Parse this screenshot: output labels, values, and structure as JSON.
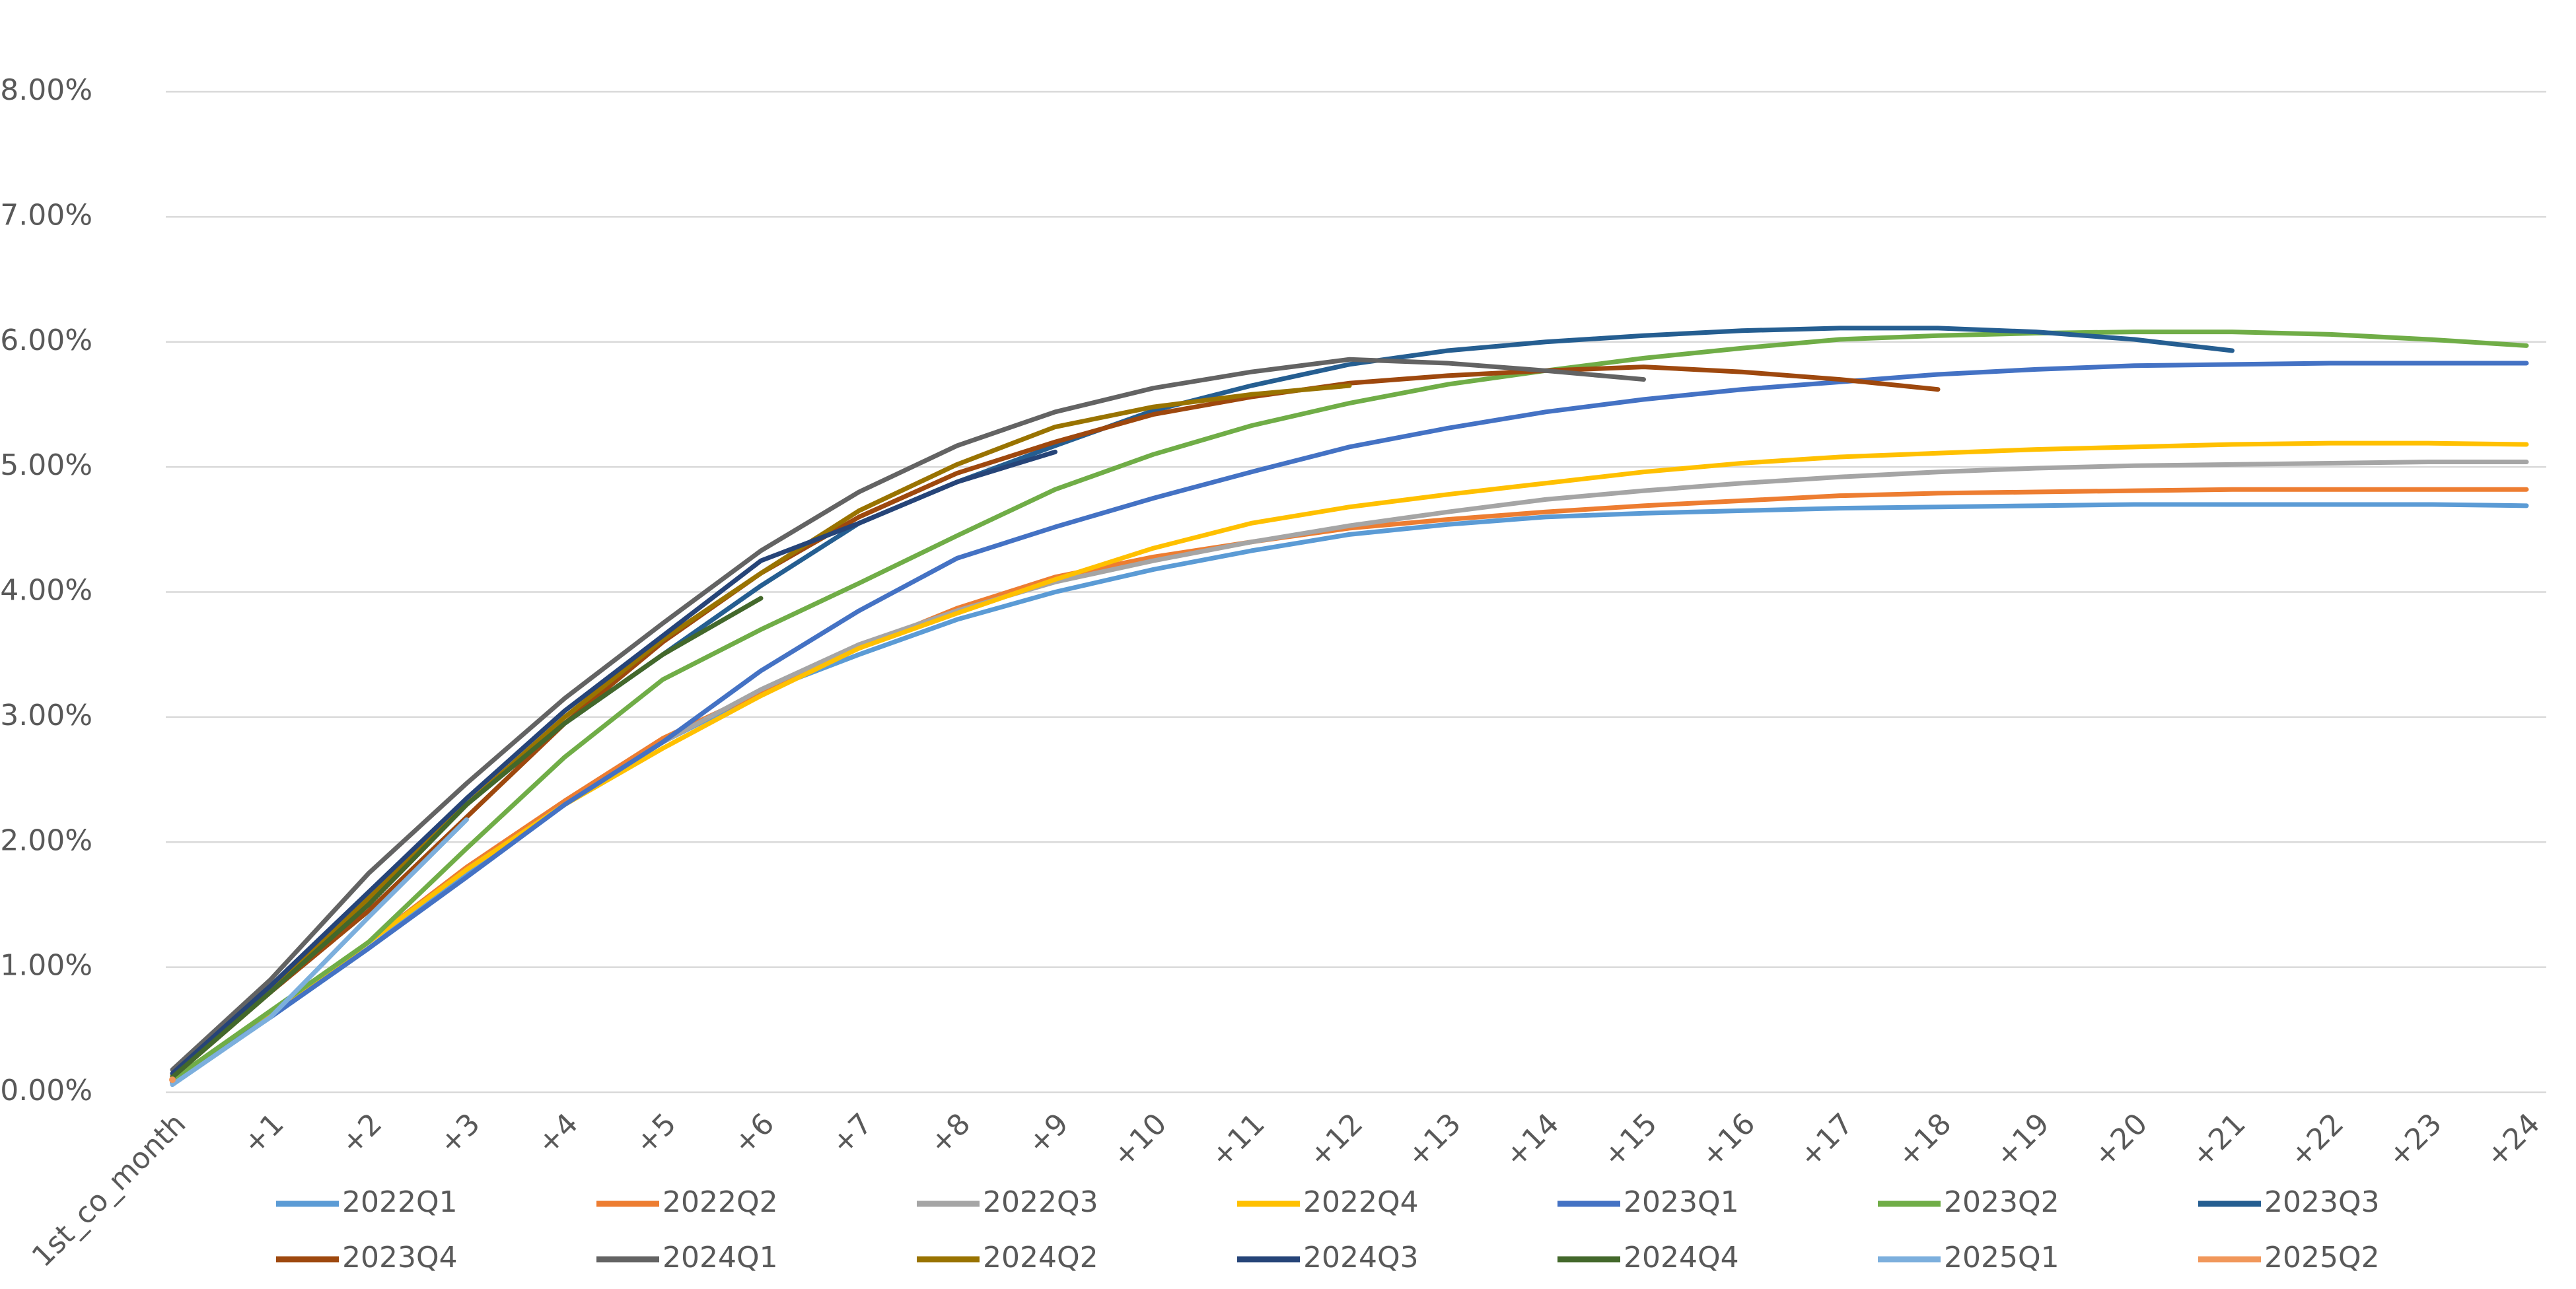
{
  "chart_data": {
    "type": "line",
    "categories": [
      "1st_co_month",
      "+1",
      "+2",
      "+3",
      "+4",
      "+5",
      "+6",
      "+7",
      "+8",
      "+9",
      "+10",
      "+11",
      "+12",
      "+13",
      "+14",
      "+15",
      "+16",
      "+17",
      "+18",
      "+19",
      "+20",
      "+21",
      "+22",
      "+23",
      "+24"
    ],
    "ylim": [
      0,
      8
    ],
    "yticks": [
      {
        "value": 0,
        "label": "0.00%"
      },
      {
        "value": 1,
        "label": "1.00%"
      },
      {
        "value": 2,
        "label": "2.00%"
      },
      {
        "value": 3,
        "label": "3.00%"
      },
      {
        "value": 4,
        "label": "4.00%"
      },
      {
        "value": 5,
        "label": "5.00%"
      },
      {
        "value": 6,
        "label": "6.00%"
      },
      {
        "value": 7,
        "label": "7.00%"
      },
      {
        "value": 8,
        "label": "8.00%"
      }
    ],
    "grid": true,
    "legend": "bottom",
    "series": [
      {
        "name": "2022Q1",
        "color": "#5B9BD5",
        "values": [
          0.07,
          0.6,
          1.15,
          1.75,
          2.3,
          2.8,
          3.2,
          3.5,
          3.78,
          4.0,
          4.18,
          4.33,
          4.46,
          4.54,
          4.6,
          4.63,
          4.65,
          4.67,
          4.68,
          4.69,
          4.7,
          4.7,
          4.7,
          4.7,
          4.69
        ]
      },
      {
        "name": "2022Q2",
        "color": "#ED7D31",
        "values": [
          0.08,
          0.62,
          1.2,
          1.8,
          2.33,
          2.83,
          3.2,
          3.55,
          3.87,
          4.12,
          4.28,
          4.4,
          4.51,
          4.58,
          4.64,
          4.69,
          4.73,
          4.77,
          4.79,
          4.8,
          4.81,
          4.82,
          4.82,
          4.82,
          4.82
        ]
      },
      {
        "name": "2022Q3",
        "color": "#A5A5A5",
        "values": [
          0.08,
          0.62,
          1.2,
          1.78,
          2.3,
          2.8,
          3.22,
          3.58,
          3.85,
          4.08,
          4.25,
          4.4,
          4.53,
          4.64,
          4.74,
          4.81,
          4.87,
          4.92,
          4.96,
          4.99,
          5.01,
          5.02,
          5.03,
          5.04,
          5.04
        ]
      },
      {
        "name": "2022Q4",
        "color": "#FFC000",
        "values": [
          0.08,
          0.62,
          1.2,
          1.78,
          2.3,
          2.75,
          3.17,
          3.55,
          3.83,
          4.1,
          4.35,
          4.55,
          4.68,
          4.78,
          4.87,
          4.96,
          5.03,
          5.08,
          5.11,
          5.14,
          5.16,
          5.18,
          5.19,
          5.19,
          5.18
        ]
      },
      {
        "name": "2023Q1",
        "color": "#4472C4",
        "values": [
          0.08,
          0.6,
          1.15,
          1.72,
          2.3,
          2.8,
          3.37,
          3.85,
          4.27,
          4.52,
          4.75,
          4.96,
          5.16,
          5.31,
          5.44,
          5.54,
          5.62,
          5.68,
          5.74,
          5.78,
          5.81,
          5.82,
          5.83,
          5.83,
          5.83
        ]
      },
      {
        "name": "2023Q2",
        "color": "#70AD47",
        "values": [
          0.1,
          0.65,
          1.2,
          1.95,
          2.68,
          3.3,
          3.7,
          4.07,
          4.45,
          4.82,
          5.1,
          5.33,
          5.51,
          5.66,
          5.77,
          5.87,
          5.95,
          6.02,
          6.05,
          6.07,
          6.08,
          6.08,
          6.06,
          6.02,
          5.97
        ]
      },
      {
        "name": "2023Q3",
        "color": "#255E91",
        "values": [
          0.15,
          0.85,
          1.5,
          2.3,
          2.95,
          3.5,
          4.05,
          4.55,
          4.88,
          5.17,
          5.45,
          5.65,
          5.82,
          5.93,
          6.0,
          6.05,
          6.09,
          6.11,
          6.11,
          6.08,
          6.02,
          5.93,
          null,
          null,
          null
        ]
      },
      {
        "name": "2023Q4",
        "color": "#9E480E",
        "values": [
          0.12,
          0.8,
          1.45,
          2.2,
          2.95,
          3.6,
          4.15,
          4.6,
          4.95,
          5.2,
          5.42,
          5.56,
          5.67,
          5.73,
          5.77,
          5.8,
          5.76,
          5.7,
          5.62,
          null,
          null,
          null,
          null,
          null,
          null
        ]
      },
      {
        "name": "2024Q1",
        "color": "#636363",
        "values": [
          0.18,
          0.9,
          1.75,
          2.47,
          3.15,
          3.75,
          4.33,
          4.8,
          5.17,
          5.44,
          5.63,
          5.76,
          5.86,
          5.83,
          5.77,
          5.7,
          null,
          null,
          null,
          null,
          null,
          null,
          null,
          null,
          null
        ]
      },
      {
        "name": "2024Q2",
        "color": "#997300",
        "values": [
          0.13,
          0.8,
          1.55,
          2.3,
          3.0,
          3.62,
          4.15,
          4.65,
          5.02,
          5.32,
          5.48,
          5.58,
          5.65,
          null,
          null,
          null,
          null,
          null,
          null,
          null,
          null,
          null,
          null,
          null,
          null
        ]
      },
      {
        "name": "2024Q3",
        "color": "#264478",
        "values": [
          0.15,
          0.85,
          1.6,
          2.35,
          3.05,
          3.65,
          4.25,
          4.55,
          4.88,
          5.12,
          null,
          null,
          null,
          null,
          null,
          null,
          null,
          null,
          null,
          null,
          null,
          null,
          null,
          null,
          null
        ]
      },
      {
        "name": "2024Q4",
        "color": "#43682B",
        "values": [
          0.12,
          0.8,
          1.5,
          2.3,
          2.95,
          3.5,
          3.95,
          null,
          null,
          null,
          null,
          null,
          null,
          null,
          null,
          null,
          null,
          null,
          null,
          null,
          null,
          null,
          null,
          null,
          null
        ]
      },
      {
        "name": "2025Q1",
        "color": "#7CAFDD",
        "values": [
          0.06,
          0.6,
          1.4,
          2.18,
          null,
          null,
          null,
          null,
          null,
          null,
          null,
          null,
          null,
          null,
          null,
          null,
          null,
          null,
          null,
          null,
          null,
          null,
          null,
          null,
          null
        ]
      },
      {
        "name": "2025Q2",
        "color": "#F1975A",
        "values": [
          0.1,
          null,
          null,
          null,
          null,
          null,
          null,
          null,
          null,
          null,
          null,
          null,
          null,
          null,
          null,
          null,
          null,
          null,
          null,
          null,
          null,
          null,
          null,
          null,
          null
        ]
      }
    ]
  }
}
